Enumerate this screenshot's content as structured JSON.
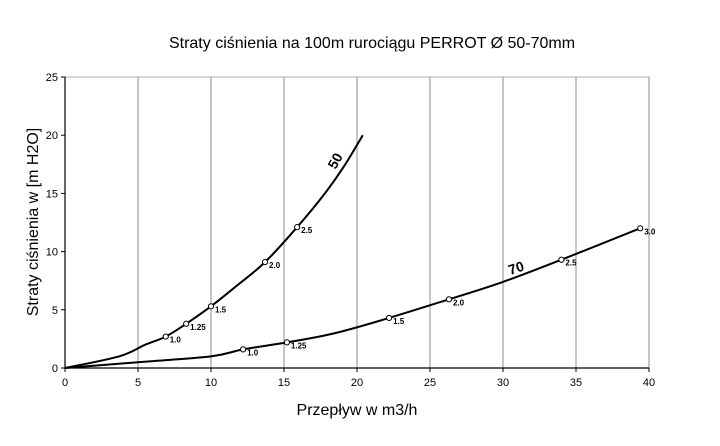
{
  "chart_data": {
    "type": "line",
    "title": "Straty ciśnienia na 100m rurociągu PERROT Ø 50-70mm",
    "xlabel": "Przepływ w m3/h",
    "ylabel": "Straty ciśnienia w [m H2O]",
    "xlim": [
      0,
      40
    ],
    "ylim": [
      0,
      25
    ],
    "xticks": [
      0,
      5,
      10,
      15,
      20,
      25,
      30,
      35,
      40
    ],
    "yticks": [
      0,
      5,
      10,
      15,
      20,
      25
    ],
    "grid": "vertical",
    "series": [
      {
        "name": "50",
        "curve": [
          [
            0,
            0
          ],
          [
            3.7,
            1.0
          ],
          [
            5.5,
            2.0
          ],
          [
            6.9,
            2.7
          ],
          [
            8.3,
            3.8
          ],
          [
            10.0,
            5.3
          ],
          [
            11.7,
            7.0
          ],
          [
            13.7,
            9.1
          ],
          [
            15.9,
            12.1
          ],
          [
            17.8,
            15.0
          ],
          [
            19.2,
            17.5
          ],
          [
            20.4,
            20.0
          ]
        ],
        "markers": [
          {
            "x": 6.9,
            "y": 2.7,
            "label": "1.0"
          },
          {
            "x": 8.3,
            "y": 3.8,
            "label": "1.25"
          },
          {
            "x": 10.0,
            "y": 5.3,
            "label": "1.5"
          },
          {
            "x": 13.7,
            "y": 9.1,
            "label": "2.0"
          },
          {
            "x": 15.9,
            "y": 12.1,
            "label": "2.5"
          }
        ]
      },
      {
        "name": "70",
        "curve": [
          [
            0,
            0
          ],
          [
            5,
            0.5
          ],
          [
            10,
            1.0
          ],
          [
            12.2,
            1.6
          ],
          [
            15.2,
            2.2
          ],
          [
            18.5,
            3.0
          ],
          [
            22.2,
            4.3
          ],
          [
            26.3,
            5.9
          ],
          [
            30,
            7.4
          ],
          [
            34,
            9.3
          ],
          [
            39.4,
            12.0
          ]
        ],
        "markers": [
          {
            "x": 12.2,
            "y": 1.6,
            "label": "1.0"
          },
          {
            "x": 15.2,
            "y": 2.2,
            "label": "1.25"
          },
          {
            "x": 22.2,
            "y": 4.3,
            "label": "1.5"
          },
          {
            "x": 26.3,
            "y": 5.9,
            "label": "2.0"
          },
          {
            "x": 34.0,
            "y": 9.3,
            "label": "2.5"
          },
          {
            "x": 39.4,
            "y": 12.0,
            "label": "3.0"
          }
        ]
      }
    ]
  }
}
